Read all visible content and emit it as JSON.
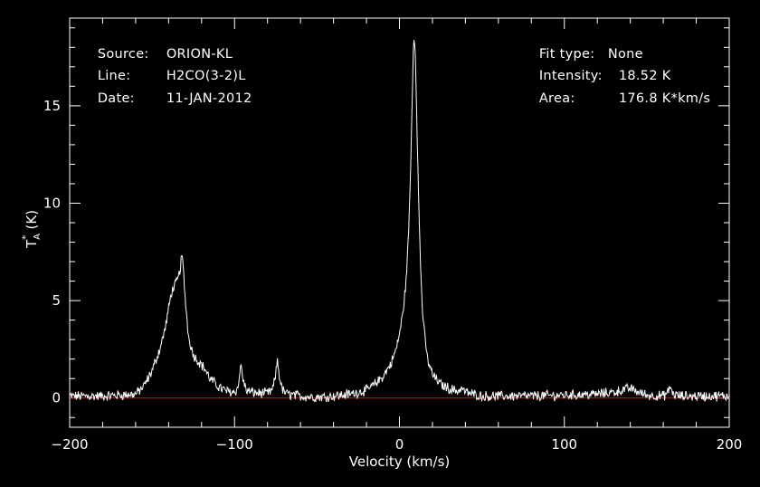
{
  "header_left": {
    "source_label": "Source:",
    "source_value": "ORION-KL",
    "line_label": "Line:",
    "line_value": "H2CO(3-2)L",
    "date_label": "Date:",
    "date_value": "11-JAN-2012"
  },
  "header_right": {
    "fit_label": "Fit type:",
    "fit_value": "None",
    "intensity_label": "Intensity:",
    "intensity_value": "18.52 K",
    "area_label": "Area:",
    "area_value": "176.8 K*km/s"
  },
  "chart_data": {
    "type": "line",
    "xlabel": "Velocity (km/s)",
    "ylabel_main": "T",
    "ylabel_sub": "A",
    "ylabel_sup": "*",
    "ylabel_unit": "(K)",
    "xlim": [
      -200,
      200
    ],
    "ylim": [
      -1.5,
      19.5
    ],
    "x_ticks": [
      -200,
      -100,
      0,
      100,
      200
    ],
    "x_tick_labels": [
      "−200",
      "−100",
      "0",
      "100",
      "200"
    ],
    "y_ticks": [
      0,
      5,
      10,
      15
    ],
    "y_tick_labels": [
      "0",
      "5",
      "10",
      "15"
    ],
    "baseline": 0,
    "colors": {
      "spectrum": "#ffffff",
      "baseline": "#ff0000",
      "axes": "#ffffff",
      "background": "#000000"
    },
    "series": [
      {
        "x": [
          -200,
          -180,
          -160,
          -155,
          -150,
          -145,
          -142,
          -140,
          -138,
          -136,
          -134,
          -133,
          -132,
          -131,
          -130,
          -129,
          -128,
          -125,
          -122,
          -118,
          -115,
          -110,
          -105,
          -100,
          -98,
          -97,
          -96,
          -95,
          -93,
          -90,
          -85,
          -80,
          -77,
          -75,
          -74,
          -73,
          -71,
          -68,
          -60,
          -50,
          -40,
          -30,
          -20,
          -15,
          -10,
          -5,
          -2,
          0,
          2,
          4,
          5,
          6,
          7,
          8,
          8.5,
          9,
          9.5,
          10,
          11,
          12,
          13,
          14,
          15,
          17,
          20,
          25,
          30,
          35,
          38,
          40,
          45,
          50,
          60,
          80,
          100,
          120,
          130,
          135,
          140,
          145,
          150,
          160,
          163,
          164,
          166,
          170,
          180,
          200
        ],
        "y": [
          0.1,
          0.1,
          0.2,
          0.6,
          1.4,
          2.6,
          3.6,
          4.6,
          5.5,
          5.8,
          6.2,
          6.6,
          7.4,
          6.5,
          5.2,
          4.2,
          3.2,
          2.2,
          1.9,
          1.5,
          1.0,
          0.6,
          0.35,
          0.3,
          0.5,
          1.2,
          1.7,
          1.0,
          0.4,
          0.3,
          0.25,
          0.25,
          0.4,
          1.2,
          2.0,
          1.2,
          0.4,
          0.2,
          0.1,
          0.05,
          0.1,
          0.2,
          0.4,
          0.7,
          1.1,
          1.8,
          2.5,
          3.3,
          4.3,
          6.0,
          7.5,
          9.5,
          12.5,
          16.5,
          18.2,
          18.5,
          18.0,
          16.5,
          12.5,
          9.0,
          6.3,
          4.5,
          3.4,
          2.0,
          1.2,
          0.7,
          0.5,
          0.35,
          0.5,
          0.3,
          0.2,
          0.1,
          0.1,
          0.1,
          0.15,
          0.2,
          0.3,
          0.4,
          0.5,
          0.3,
          0.15,
          0.1,
          0.3,
          0.6,
          0.2,
          0.1,
          0.1,
          0.1
        ]
      }
    ]
  }
}
